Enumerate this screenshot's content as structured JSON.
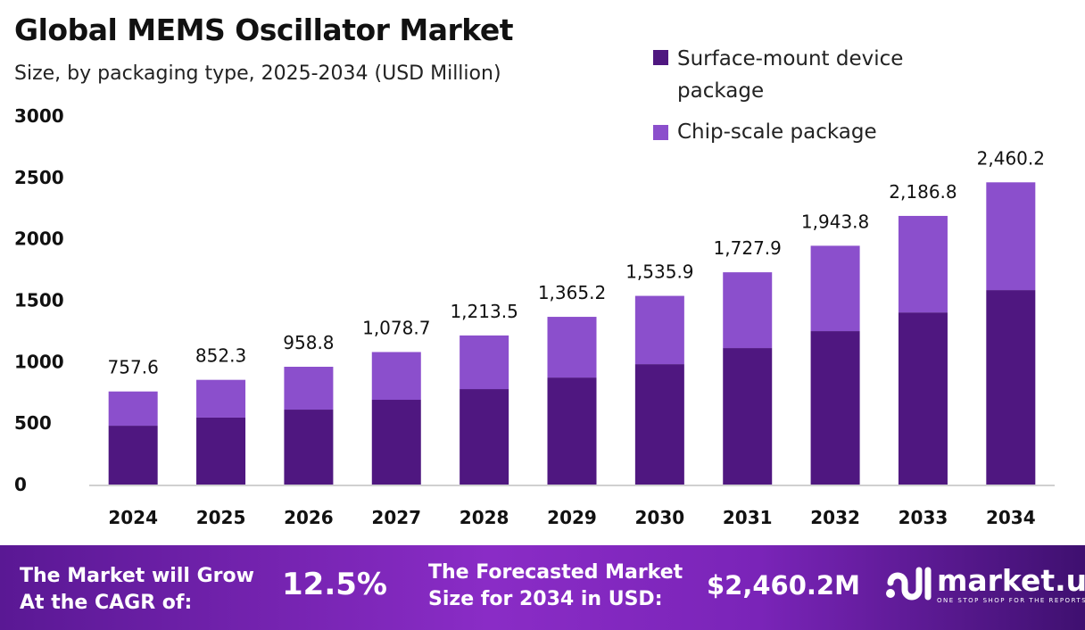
{
  "chart_data": {
    "type": "bar",
    "stacked": true,
    "title": "Global MEMS Oscillator Market",
    "subtitle": "Size, by packaging type, 2025-2034 (USD Million)",
    "categories": [
      "2024",
      "2025",
      "2026",
      "2027",
      "2028",
      "2029",
      "2030",
      "2031",
      "2032",
      "2033",
      "2034"
    ],
    "series": [
      {
        "name": "Surface-mount device package",
        "color": "#4f1780",
        "values": [
          479,
          545,
          610,
          690,
          777,
          871,
          980,
          1111,
          1249,
          1401,
          1583
        ]
      },
      {
        "name": "Chip-scale package",
        "color": "#8b4fcc",
        "values": [
          278.6,
          307.3,
          348.8,
          388.7,
          436.5,
          494.2,
          555.9,
          616.9,
          694.8,
          785.8,
          877.2
        ]
      }
    ],
    "totals": [
      757.6,
      852.3,
      958.8,
      1078.7,
      1213.5,
      1365.2,
      1535.9,
      1727.9,
      1943.8,
      2186.8,
      2460.2
    ],
    "total_labels": [
      "757.6",
      "852.3",
      "958.8",
      "1,078.7",
      "1,213.5",
      "1,365.2",
      "1,535.9",
      "1,727.9",
      "1,943.8",
      "2,186.8",
      "2,460.2"
    ],
    "ylim": [
      0,
      3000
    ],
    "yticks": [
      "0",
      "500",
      "1000",
      "1500",
      "2000",
      "2500",
      "3000"
    ],
    "grid": false,
    "legend_position": "top-right"
  },
  "banner": {
    "cagr_label_1": "The Market will Grow",
    "cagr_label_2": "At the CAGR of:",
    "cagr_value": "12.5%",
    "forecast_label_1": "The Forecasted Market",
    "forecast_label_2": "Size for 2034 in USD:",
    "forecast_value": "$2,460.2M",
    "logo_name": "market.us",
    "logo_tagline": "ONE STOP SHOP FOR THE REPORTS"
  }
}
